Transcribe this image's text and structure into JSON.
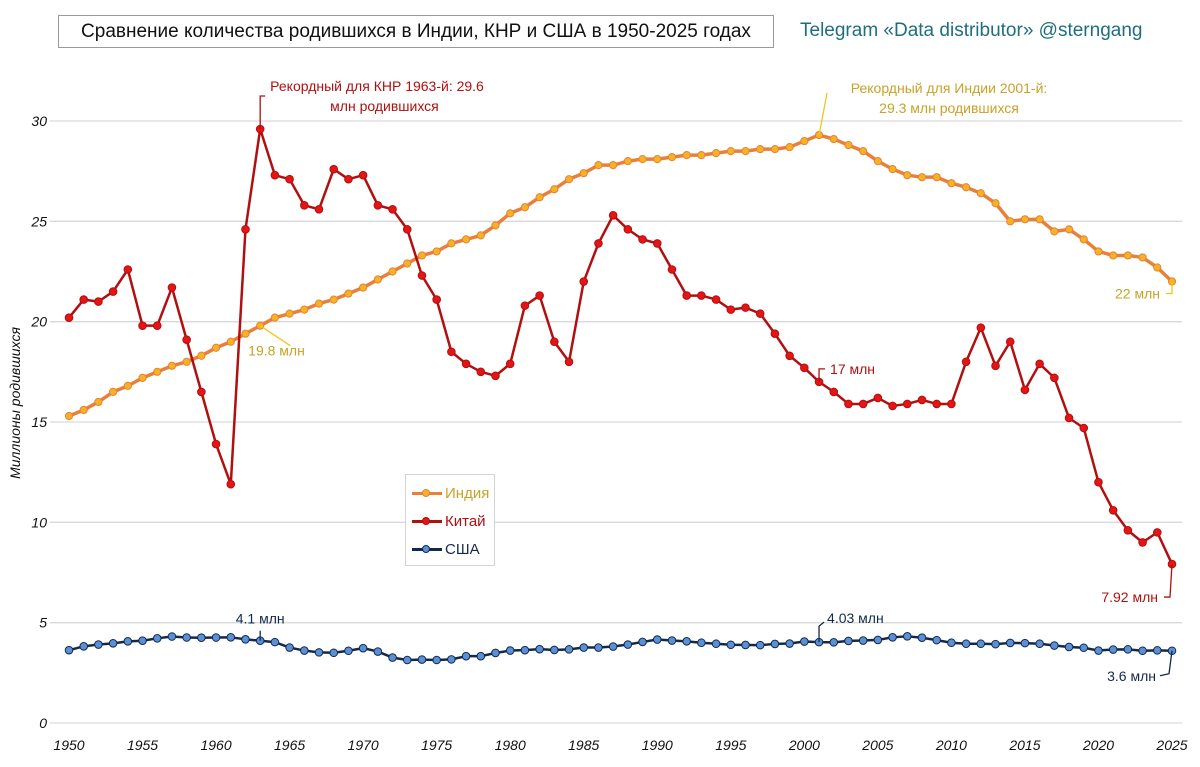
{
  "header": {
    "title": "Сравнение количества родившихся в Индии, КНР и США в 1950-2025 годах",
    "credit": "Telegram «Data distributor» @sterngang"
  },
  "chart_data": {
    "type": "line",
    "title": "Сравнение количества родившихся в Индии, КНР и США в 1950-2025 годах",
    "xlabel": "",
    "ylabel": "Миллионы родившихся",
    "xlim": [
      1950,
      2025
    ],
    "ylim": [
      0,
      32
    ],
    "grid": "horizontal",
    "legend_position": "center-left",
    "x_ticks": [
      "1950",
      "1955",
      "1960",
      "1965",
      "1970",
      "1975",
      "1980",
      "1985",
      "1990",
      "1995",
      "2000",
      "2005",
      "2010",
      "2015",
      "2020",
      "2025"
    ],
    "y_ticks": [
      "0",
      "5",
      "10",
      "15",
      "20",
      "25",
      "30"
    ],
    "x_start": 1950,
    "series": [
      {
        "name": "Индия",
        "color": "#e8803a",
        "marker_color": "#f5b323",
        "label_color": "#c9a227",
        "values": [
          15.3,
          15.6,
          16.0,
          16.5,
          16.8,
          17.2,
          17.5,
          17.8,
          18.0,
          18.3,
          18.7,
          19.0,
          19.4,
          19.8,
          20.2,
          20.4,
          20.6,
          20.9,
          21.1,
          21.4,
          21.7,
          22.1,
          22.5,
          22.9,
          23.3,
          23.5,
          23.9,
          24.1,
          24.3,
          24.8,
          25.4,
          25.7,
          26.2,
          26.6,
          27.1,
          27.4,
          27.8,
          27.8,
          28.0,
          28.1,
          28.1,
          28.2,
          28.3,
          28.3,
          28.4,
          28.5,
          28.5,
          28.6,
          28.6,
          28.7,
          29.0,
          29.3,
          29.1,
          28.8,
          28.5,
          28.0,
          27.6,
          27.3,
          27.2,
          27.2,
          26.9,
          26.7,
          26.4,
          25.9,
          25.0,
          25.1,
          25.1,
          24.5,
          24.6,
          24.1,
          23.5,
          23.3,
          23.3,
          23.2,
          22.7,
          22.0
        ]
      },
      {
        "name": "Китай",
        "color": "#b01010",
        "marker_color": "#e61414",
        "label_color": "#b01010",
        "values": [
          20.2,
          21.1,
          21.0,
          21.5,
          22.6,
          19.8,
          19.8,
          21.7,
          19.1,
          16.5,
          13.9,
          11.9,
          24.6,
          29.6,
          27.3,
          27.1,
          25.8,
          25.6,
          27.6,
          27.1,
          27.3,
          25.8,
          25.6,
          24.6,
          22.3,
          21.1,
          18.5,
          17.9,
          17.5,
          17.3,
          17.9,
          20.8,
          21.3,
          19.0,
          18.0,
          22.0,
          23.9,
          25.3,
          24.6,
          24.1,
          23.9,
          22.6,
          21.3,
          21.3,
          21.1,
          20.6,
          20.7,
          20.4,
          19.4,
          18.3,
          17.7,
          17.0,
          16.5,
          15.9,
          15.9,
          16.2,
          15.8,
          15.9,
          16.1,
          15.9,
          15.9,
          18.0,
          19.7,
          17.8,
          19.0,
          16.6,
          17.9,
          17.2,
          15.2,
          14.7,
          12.0,
          10.6,
          9.6,
          9.0,
          9.5,
          7.92
        ]
      },
      {
        "name": "США",
        "color": "#13294b",
        "marker_color": "#5b8fd6",
        "label_color": "#13294b",
        "values": [
          3.63,
          3.82,
          3.91,
          3.97,
          4.07,
          4.1,
          4.22,
          4.31,
          4.26,
          4.25,
          4.26,
          4.27,
          4.17,
          4.1,
          4.03,
          3.76,
          3.61,
          3.52,
          3.5,
          3.6,
          3.73,
          3.56,
          3.26,
          3.14,
          3.16,
          3.14,
          3.17,
          3.33,
          3.33,
          3.49,
          3.61,
          3.63,
          3.68,
          3.64,
          3.67,
          3.76,
          3.76,
          3.81,
          3.91,
          4.04,
          4.16,
          4.11,
          4.07,
          4.0,
          3.95,
          3.9,
          3.89,
          3.88,
          3.94,
          3.96,
          4.06,
          4.03,
          4.02,
          4.09,
          4.11,
          4.14,
          4.27,
          4.32,
          4.25,
          4.13,
          4.0,
          3.95,
          3.95,
          3.93,
          3.99,
          3.98,
          3.95,
          3.86,
          3.79,
          3.75,
          3.61,
          3.66,
          3.67,
          3.6,
          3.62,
          3.6
        ]
      }
    ],
    "annotations": [
      {
        "series": 1,
        "year": 1963,
        "text1": "Рекордный для КНР 1963-й: 29.6",
        "text2": "млн родившихся"
      },
      {
        "series": 0,
        "year": 2001,
        "text1": "Рекордный для Индии 2001-й:",
        "text2": "29.3 млн родившихся"
      },
      {
        "series": 0,
        "year": 1963,
        "text1": "19.8 млн"
      },
      {
        "series": 0,
        "year": 2025,
        "text1": "22 млн"
      },
      {
        "series": 1,
        "year": 2001,
        "text1": "17 млн"
      },
      {
        "series": 1,
        "year": 2025,
        "text1": "7.92 млн"
      },
      {
        "series": 2,
        "year": 1963,
        "text1": "4.1 млн"
      },
      {
        "series": 2,
        "year": 2001,
        "text1": "4.03 млн"
      },
      {
        "series": 2,
        "year": 2025,
        "text1": "3.6 млн"
      }
    ]
  }
}
